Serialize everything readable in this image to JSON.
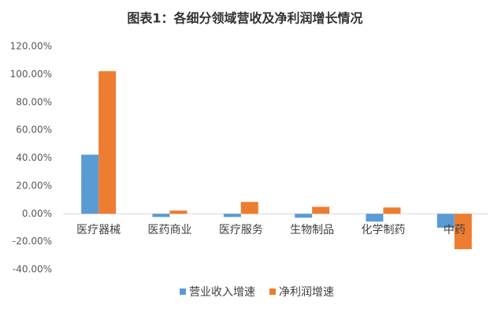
{
  "chart_data": {
    "type": "bar",
    "title": "图表1：各细分领域营收及净利润增长情况",
    "categories": [
      "医疗器械",
      "医药商业",
      "医疗服务",
      "生物制品",
      "化学制药",
      "中药"
    ],
    "series": [
      {
        "name": "营业收入增速",
        "color": "#5b9bd5",
        "values": [
          42.4,
          -2.3,
          -2.3,
          -2.8,
          -5.6,
          -10
        ]
      },
      {
        "name": "净利润增速",
        "color": "#ed7d31",
        "values": [
          102.3,
          2.3,
          8.5,
          5,
          4.5,
          -25.4
        ]
      }
    ],
    "ylim": [
      -40,
      120
    ],
    "yticks": [
      {
        "value": -40,
        "label": "-40.00%"
      },
      {
        "value": -20,
        "label": "-20.00%"
      },
      {
        "value": 0,
        "label": "0.00%"
      },
      {
        "value": 20,
        "label": "20.00%"
      },
      {
        "value": 40,
        "label": "40.00%"
      },
      {
        "value": 60,
        "label": "60.00%"
      },
      {
        "value": 80,
        "label": "80.00%"
      },
      {
        "value": 100,
        "label": "100.00%"
      },
      {
        "value": 120,
        "label": "120.00%"
      }
    ],
    "grid": false,
    "legend": "bottom"
  }
}
